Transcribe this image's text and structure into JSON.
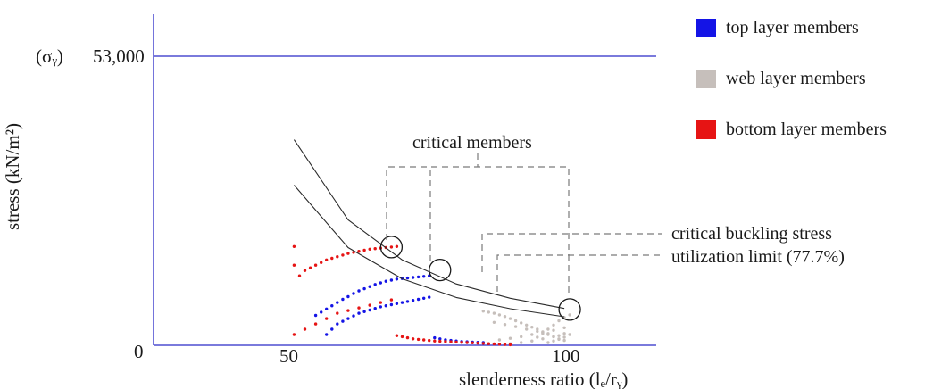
{
  "chart_data": {
    "type": "scatter",
    "xlabel": "slenderness ratio (lₑ/rᵧ)",
    "ylabel": "stress  (kN/m²)",
    "x_ticks": [
      "50",
      "100"
    ],
    "y_ticks": [
      "0"
    ],
    "yield_line": {
      "symbol": "(σᵧ)",
      "value_label": "53,000",
      "value": 53000
    },
    "xlim": [
      24,
      117
    ],
    "ylim": [
      0,
      62000
    ],
    "grid": false,
    "legend_position": "top-right",
    "legend": [
      {
        "name": "top layer members",
        "color": "#1414e6"
      },
      {
        "name": "web layer members",
        "color": "#c6bfbb"
      },
      {
        "name": "bottom layer members",
        "color": "#e61414"
      }
    ],
    "curves": [
      {
        "id": "critical-buckling-stress",
        "x": [
          50,
          60,
          70,
          80,
          90,
          100
        ],
        "y": [
          38500,
          23500,
          16000,
          11500,
          8800,
          6900
        ]
      },
      {
        "id": "utilization-limit",
        "x": [
          50,
          60,
          70,
          80,
          90,
          100
        ],
        "y": [
          30000,
          18300,
          12450,
          8950,
          6850,
          5350
        ]
      }
    ],
    "series": [
      {
        "name": "top layer members",
        "color": "#1414e6",
        "x": [
          54,
          55,
          56,
          57,
          58,
          59,
          60,
          61,
          62,
          63,
          64,
          65,
          66,
          67,
          68,
          69,
          70,
          71,
          72,
          73,
          74,
          75,
          56,
          57,
          58,
          59,
          60,
          61,
          62,
          63,
          64,
          65,
          66,
          67,
          68,
          69,
          70,
          71,
          72,
          73,
          74,
          75,
          76,
          77,
          78,
          79,
          80,
          81,
          82,
          83,
          84,
          85
        ],
        "y": [
          5600,
          6200,
          6800,
          7400,
          8000,
          8600,
          9100,
          9700,
          10200,
          10600,
          11000,
          11400,
          11700,
          12000,
          12200,
          12400,
          12500,
          12600,
          12700,
          12800,
          12900,
          13000,
          2000,
          3000,
          4000,
          4500,
          5000,
          5500,
          6000,
          6300,
          6600,
          6900,
          7200,
          7400,
          7600,
          7800,
          8000,
          8200,
          8400,
          8600,
          8800,
          9000,
          1400,
          1200,
          1000,
          900,
          800,
          700,
          650,
          600,
          550,
          500
        ]
      },
      {
        "name": "web layer members",
        "color": "#c6bfbb",
        "x": [
          85,
          86,
          87,
          88,
          89,
          90,
          91,
          92,
          93,
          94,
          95,
          96,
          97,
          98,
          99,
          100,
          95,
          96,
          97,
          98,
          99,
          100,
          101,
          97,
          98,
          99,
          100,
          101,
          90,
          92,
          94,
          96,
          98,
          100,
          87,
          89,
          91,
          93,
          95,
          97,
          99,
          88,
          90,
          92,
          94,
          96,
          98,
          100
        ],
        "y": [
          6400,
          6200,
          6000,
          5700,
          5400,
          5000,
          4600,
          4200,
          3800,
          3400,
          3000,
          2500,
          2000,
          1600,
          1200,
          900,
          1500,
          2200,
          3000,
          3800,
          4600,
          5200,
          5700,
          500,
          800,
          1100,
          1500,
          2000,
          300,
          500,
          800,
          1200,
          1600,
          2200,
          4300,
          3900,
          3500,
          3000,
          2600,
          2200,
          1800,
          1000,
          1300,
          1600,
          2000,
          2400,
          2800,
          3300
        ]
      },
      {
        "name": "bottom layer members",
        "color": "#e61414",
        "x": [
          50,
          50,
          51,
          52,
          53,
          54,
          55,
          56,
          57,
          58,
          59,
          60,
          61,
          62,
          63,
          64,
          65,
          66,
          67,
          68,
          69,
          50,
          52,
          54,
          56,
          58,
          60,
          62,
          64,
          66,
          68,
          69,
          70,
          71,
          72,
          73,
          74,
          75,
          76,
          77,
          78,
          79,
          80,
          81,
          82,
          83,
          84,
          85,
          86,
          87,
          88,
          89,
          90
        ],
        "y": [
          18500,
          15000,
          13000,
          14000,
          14500,
          15000,
          15500,
          16000,
          16300,
          16600,
          16900,
          17200,
          17400,
          17600,
          17800,
          18000,
          18100,
          18200,
          18300,
          18400,
          18500,
          2000,
          3000,
          4000,
          5000,
          6000,
          6500,
          7000,
          7500,
          8000,
          8500,
          1800,
          1600,
          1400,
          1200,
          1100,
          1000,
          900,
          800,
          750,
          700,
          650,
          600,
          550,
          500,
          450,
          400,
          350,
          300,
          250,
          200,
          150,
          100
        ]
      }
    ],
    "highlighted_points": [
      {
        "x": 68,
        "y": 18400
      },
      {
        "x": 77,
        "y": 14100
      },
      {
        "x": 101,
        "y": 6700
      }
    ],
    "annotations": {
      "critical_members": "critical members",
      "critical_buckling_stress": "critical buckling stress",
      "utilization_limit": "utilization limit (77.7%)"
    }
  }
}
